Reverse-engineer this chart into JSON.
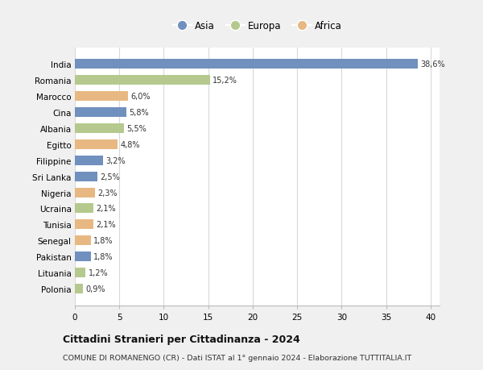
{
  "categories": [
    "India",
    "Romania",
    "Marocco",
    "Cina",
    "Albania",
    "Egitto",
    "Filippine",
    "Sri Lanka",
    "Nigeria",
    "Ucraina",
    "Tunisia",
    "Senegal",
    "Pakistan",
    "Lituania",
    "Polonia"
  ],
  "values": [
    38.6,
    15.2,
    6.0,
    5.8,
    5.5,
    4.8,
    3.2,
    2.5,
    2.3,
    2.1,
    2.1,
    1.8,
    1.8,
    1.2,
    0.9
  ],
  "labels": [
    "38,6%",
    "15,2%",
    "6,0%",
    "5,8%",
    "5,5%",
    "4,8%",
    "3,2%",
    "2,5%",
    "2,3%",
    "2,1%",
    "2,1%",
    "1,8%",
    "1,8%",
    "1,2%",
    "0,9%"
  ],
  "continents": [
    "Asia",
    "Europa",
    "Africa",
    "Asia",
    "Europa",
    "Africa",
    "Asia",
    "Asia",
    "Africa",
    "Europa",
    "Africa",
    "Africa",
    "Asia",
    "Europa",
    "Europa"
  ],
  "colors": {
    "Asia": "#7090be",
    "Europa": "#b5c98e",
    "Africa": "#e8b882"
  },
  "xlim": [
    0,
    41
  ],
  "xticks": [
    0,
    5,
    10,
    15,
    20,
    25,
    30,
    35,
    40
  ],
  "title": "Cittadini Stranieri per Cittadinanza - 2024",
  "subtitle": "COMUNE DI ROMANENGO (CR) - Dati ISTAT al 1° gennaio 2024 - Elaborazione TUTTITALIA.IT",
  "background_color": "#f0f0f0",
  "plot_background": "#ffffff",
  "grid_color": "#d8d8d8",
  "bar_height": 0.6
}
